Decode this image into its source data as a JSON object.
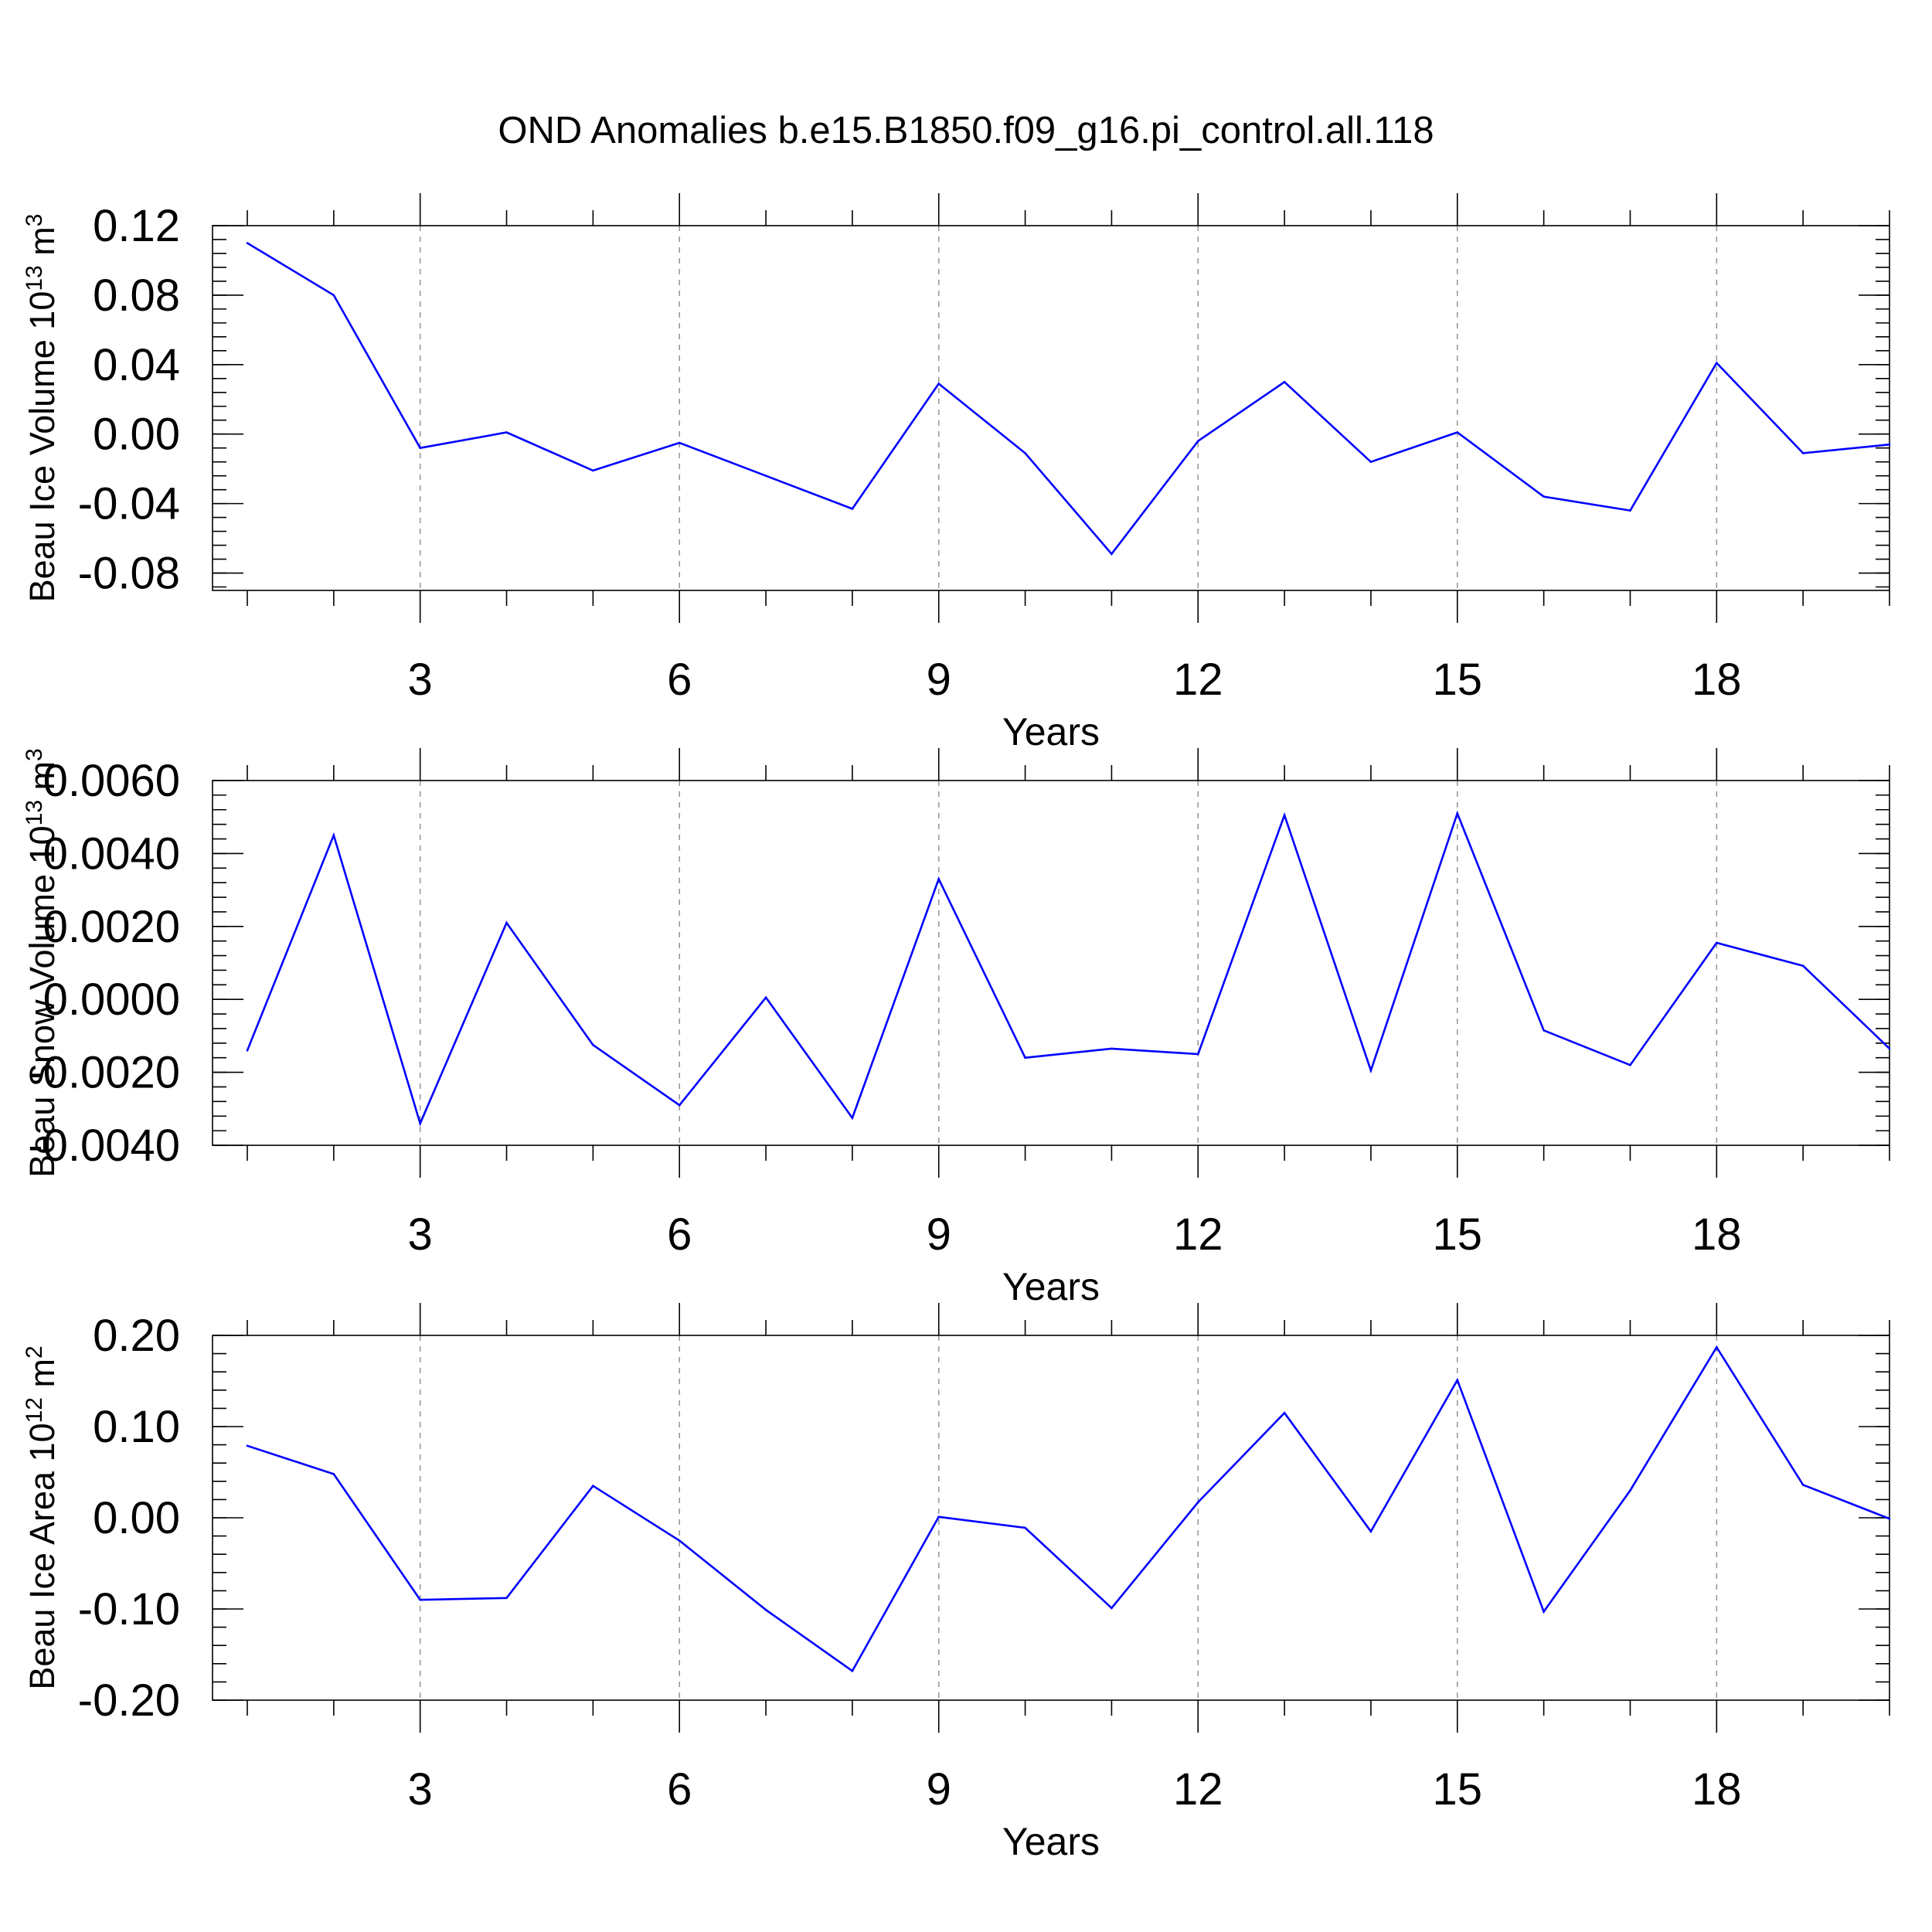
{
  "title": "OND Anomalies b.e15.B1850.f09_g16.pi_control.all.118",
  "colors": {
    "series": "#0000ff",
    "grid": "#999999",
    "axis": "#000000",
    "background": "#ffffff"
  },
  "chart_data": [
    {
      "type": "line",
      "xlabel": "Years",
      "ylabel": "Beau Ice Volume 10",
      "ylabel_exponent": "13",
      "ylabel_unit": "m",
      "ylabel_unit_exponent": "3",
      "xlim": [
        1,
        20
      ],
      "ylim": [
        -0.09,
        0.12
      ],
      "x_ticks": [
        3,
        6,
        9,
        12,
        15,
        18
      ],
      "x_tick_labels": [
        "3",
        "6",
        "9",
        "12",
        "15",
        "18"
      ],
      "y_ticks": [
        -0.08,
        -0.04,
        0.0,
        0.04,
        0.08,
        0.12
      ],
      "y_tick_labels": [
        "-0.08",
        "-0.04",
        "0.00",
        "0.04",
        "0.08",
        "0.12"
      ],
      "y_minor_step": 0.008,
      "grid": "vertical dashed at major x ticks",
      "x": [
        1,
        2,
        3,
        4,
        5,
        6,
        7,
        8,
        9,
        10,
        11,
        12,
        13,
        14,
        15,
        16,
        17,
        18,
        19,
        20
      ],
      "values": [
        0.11,
        0.08,
        -0.008,
        0.001,
        -0.021,
        -0.005,
        -0.024,
        -0.043,
        0.029,
        -0.011,
        -0.069,
        -0.004,
        0.03,
        -0.016,
        0.001,
        -0.036,
        -0.044,
        0.041,
        -0.011,
        -0.006
      ]
    },
    {
      "type": "line",
      "xlabel": "Years",
      "ylabel": "Beau Snow Volume 10",
      "ylabel_exponent": "13",
      "ylabel_unit": "m",
      "ylabel_unit_exponent": "3",
      "xlim": [
        1,
        20
      ],
      "ylim": [
        -0.004,
        0.006
      ],
      "x_ticks": [
        3,
        6,
        9,
        12,
        15,
        18
      ],
      "x_tick_labels": [
        "3",
        "6",
        "9",
        "12",
        "15",
        "18"
      ],
      "y_ticks": [
        -0.004,
        -0.002,
        0.0,
        0.002,
        0.004,
        0.006
      ],
      "y_tick_labels": [
        "-0.0040",
        "-0.0020",
        "0.0000",
        "0.0020",
        "0.0040",
        "0.0060"
      ],
      "y_minor_step": 0.0004,
      "grid": "vertical dashed at major x ticks",
      "x": [
        1,
        2,
        3,
        4,
        5,
        6,
        7,
        8,
        9,
        10,
        11,
        12,
        13,
        14,
        15,
        16,
        17,
        18,
        19,
        20
      ],
      "values": [
        -0.0014,
        0.0045,
        -0.0034,
        0.0021,
        -0.00125,
        -0.0029,
        5e-05,
        -0.00325,
        0.0033,
        -0.0016,
        -0.00135,
        -0.0015,
        0.00505,
        -0.00195,
        0.0051,
        -0.00085,
        -0.0018,
        0.00155,
        0.00092,
        -0.00135
      ]
    },
    {
      "type": "line",
      "xlabel": "Years",
      "ylabel": "Beau Ice Area 10",
      "ylabel_exponent": "12",
      "ylabel_unit": "m",
      "ylabel_unit_exponent": "2",
      "xlim": [
        1,
        20
      ],
      "ylim": [
        -0.2,
        0.2
      ],
      "x_ticks": [
        3,
        6,
        9,
        12,
        15,
        18
      ],
      "x_tick_labels": [
        "3",
        "6",
        "9",
        "12",
        "15",
        "18"
      ],
      "y_ticks": [
        -0.2,
        -0.1,
        0.0,
        0.1,
        0.2
      ],
      "y_tick_labels": [
        "-0.20",
        "-0.10",
        "0.00",
        "0.10",
        "0.20"
      ],
      "y_minor_step": 0.02,
      "grid": "vertical dashed at major x ticks",
      "x": [
        1,
        2,
        3,
        4,
        5,
        6,
        7,
        8,
        9,
        10,
        11,
        12,
        13,
        14,
        15,
        16,
        17,
        18,
        19,
        20
      ],
      "values": [
        0.079,
        0.048,
        -0.09,
        -0.088,
        0.035,
        -0.025,
        -0.101,
        -0.168,
        0.001,
        -0.011,
        -0.099,
        0.017,
        0.115,
        -0.015,
        0.151,
        -0.103,
        0.03,
        0.187,
        0.036,
        -0.001
      ]
    }
  ]
}
